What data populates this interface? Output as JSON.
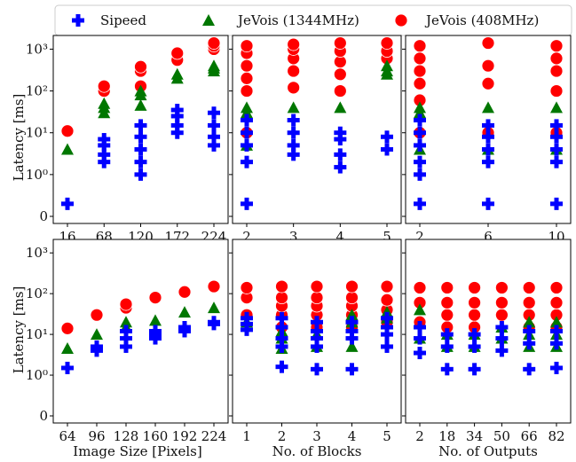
{
  "legend": {
    "placement": "top",
    "entries": [
      {
        "label": "Sipeed",
        "marker": "plus",
        "color": "#0000ff"
      },
      {
        "label": "JeVois (1344MHz)",
        "marker": "triangle",
        "color": "#007700"
      },
      {
        "label": "JeVois (408MHz)",
        "marker": "circle",
        "color": "#ff0000"
      }
    ]
  },
  "chart_data": [
    {
      "type": "scatter",
      "xlabel": "",
      "ylabel": "Latency [ms]",
      "yscale": "symlog",
      "categories": [
        "16",
        "68",
        "120",
        "172",
        "224"
      ],
      "series": [
        {
          "name": "Sipeed",
          "values": [
            [
              0.3
            ],
            [
              2,
              3,
              5,
              7
            ],
            [
              1,
              2,
              4,
              8,
              15
            ],
            [
              10,
              15,
              25,
              35
            ],
            [
              5,
              8,
              15,
              30
            ]
          ]
        },
        {
          "name": "JeVois (1344MHz)",
          "values": [
            [
              4
            ],
            [
              30,
              40,
              50
            ],
            [
              45,
              80,
              100
            ],
            [
              200,
              250
            ],
            [
              300,
              350,
              400
            ]
          ]
        },
        {
          "name": "JeVois (408MHz)",
          "values": [
            [
              11
            ],
            [
              100,
              130
            ],
            [
              130,
              300,
              380
            ],
            [
              550,
              800
            ],
            [
              1000,
              1200,
              1400
            ]
          ]
        }
      ]
    },
    {
      "type": "scatter",
      "xlabel": "",
      "ylabel": "",
      "yscale": "symlog",
      "categories": [
        "2",
        "3",
        "4",
        "5"
      ],
      "series": [
        {
          "name": "Sipeed",
          "values": [
            [
              0.3,
              2,
              5,
              10,
              20
            ],
            [
              3,
              5,
              10,
              20
            ],
            [
              1.5,
              3,
              7,
              10
            ],
            [
              4,
              8
            ]
          ]
        },
        {
          "name": "JeVois (1344MHz)",
          "values": [
            [
              5,
              30,
              40
            ],
            [
              40
            ],
            [
              40
            ],
            [
              250,
              300,
              400
            ]
          ]
        },
        {
          "name": "JeVois (408MHz)",
          "values": [
            [
              10,
              100,
              200,
              400,
              800,
              1200
            ],
            [
              120,
              300,
              600,
              1000,
              1300
            ],
            [
              100,
              250,
              500,
              900,
              1400
            ],
            [
              600,
              900,
              1400
            ]
          ]
        }
      ]
    },
    {
      "type": "scatter",
      "xlabel": "",
      "ylabel": "",
      "yscale": "symlog",
      "categories": [
        "2",
        "6",
        "10"
      ],
      "series": [
        {
          "name": "Sipeed",
          "values": [
            [
              0.3,
              1,
              2,
              5,
              10,
              20
            ],
            [
              0.3,
              2,
              4,
              8,
              15
            ],
            [
              0.3,
              2,
              4,
              8,
              15
            ]
          ]
        },
        {
          "name": "JeVois (1344MHz)",
          "values": [
            [
              4,
              30,
              40
            ],
            [
              4,
              40
            ],
            [
              4,
              40
            ]
          ]
        },
        {
          "name": "JeVois (408MHz)",
          "values": [
            [
              10,
              60,
              150,
              300,
              600,
              1200
            ],
            [
              10,
              150,
              400,
              1400
            ],
            [
              10,
              100,
              300,
              600,
              1200
            ]
          ]
        }
      ]
    },
    {
      "type": "scatter",
      "xlabel": "Image Size [Pixels]",
      "ylabel": "Latency [ms]",
      "yscale": "symlog",
      "categories": [
        "64",
        "96",
        "128",
        "160",
        "192",
        "224"
      ],
      "series": [
        {
          "name": "Sipeed",
          "values": [
            [
              1.5
            ],
            [
              4,
              5
            ],
            [
              5,
              8,
              12
            ],
            [
              8,
              10,
              12
            ],
            [
              12,
              15
            ],
            [
              18,
              20
            ]
          ]
        },
        {
          "name": "JeVois (1344MHz)",
          "values": [
            [
              4.5
            ],
            [
              10
            ],
            [
              15,
              20
            ],
            [
              22
            ],
            [
              35
            ],
            [
              45
            ]
          ]
        },
        {
          "name": "JeVois (408MHz)",
          "values": [
            [
              14
            ],
            [
              30
            ],
            [
              45,
              55
            ],
            [
              80
            ],
            [
              110
            ],
            [
              150
            ]
          ]
        }
      ]
    },
    {
      "type": "scatter",
      "xlabel": "No. of Blocks",
      "ylabel": "",
      "yscale": "symlog",
      "categories": [
        "1",
        "2",
        "3",
        "4",
        "5"
      ],
      "series": [
        {
          "name": "Sipeed",
          "values": [
            [
              13,
              18,
              25
            ],
            [
              1.6,
              5,
              8,
              15,
              25
            ],
            [
              1.4,
              5,
              8,
              12,
              20
            ],
            [
              1.4,
              8,
              12,
              20
            ],
            [
              5,
              10,
              15,
              25
            ]
          ]
        },
        {
          "name": "JeVois (1344MHz)",
          "values": [
            [
              20
            ],
            [
              4.5,
              8,
              12
            ],
            [
              5,
              10
            ],
            [
              5,
              20,
              30
            ],
            [
              25,
              35
            ]
          ]
        },
        {
          "name": "JeVois (408MHz)",
          "values": [
            [
              30,
              80,
              140
            ],
            [
              15,
              30,
              50,
              80,
              150
            ],
            [
              15,
              30,
              50,
              80,
              150
            ],
            [
              15,
              30,
              50,
              80,
              150
            ],
            [
              20,
              40,
              70,
              150
            ]
          ]
        }
      ]
    },
    {
      "type": "scatter",
      "xlabel": "No. of Outputs",
      "ylabel": "",
      "yscale": "symlog",
      "categories": [
        "2",
        "18",
        "34",
        "50",
        "66",
        "82"
      ],
      "series": [
        {
          "name": "Sipeed",
          "values": [
            [
              3.5,
              8,
              15
            ],
            [
              1.4,
              5,
              10
            ],
            [
              1.4,
              5,
              10
            ],
            [
              4,
              8,
              15
            ],
            [
              1.4,
              6,
              12
            ],
            [
              1.5,
              6,
              12
            ]
          ]
        },
        {
          "name": "JeVois (1344MHz)",
          "values": [
            [
              8,
              40
            ],
            [
              5,
              10
            ],
            [
              5,
              10
            ],
            [
              8,
              15
            ],
            [
              5,
              10,
              20
            ],
            [
              5,
              10,
              20
            ]
          ]
        },
        {
          "name": "JeVois (408MHz)",
          "values": [
            [
              20,
              60,
              140
            ],
            [
              15,
              30,
              60,
              140
            ],
            [
              15,
              30,
              60,
              140
            ],
            [
              30,
              60,
              140
            ],
            [
              15,
              30,
              60,
              140
            ],
            [
              15,
              30,
              60,
              140
            ]
          ]
        }
      ]
    }
  ]
}
